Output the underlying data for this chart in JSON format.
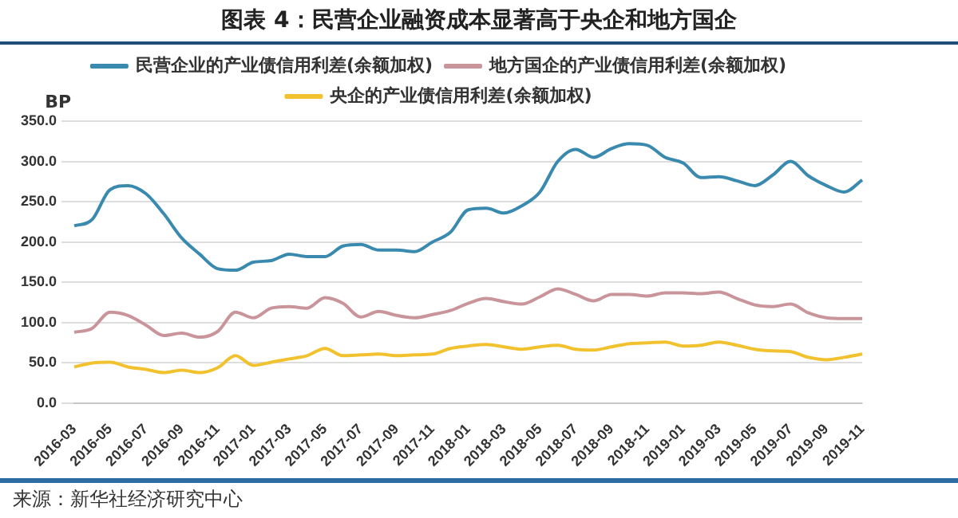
{
  "chart_data": {
    "type": "line",
    "title": "图表 4：民营企业融资成本显著高于央企和地方国企",
    "ylabel": "BP",
    "categories": [
      "2016-03",
      null,
      "2016-05",
      null,
      "2016-07",
      null,
      "2016-09",
      null,
      "2016-11",
      null,
      "2017-01",
      null,
      "2017-03",
      null,
      "2017-05",
      null,
      "2017-07",
      null,
      "2017-09",
      null,
      "2017-11",
      null,
      "2018-01",
      null,
      "2018-03",
      null,
      "2018-05",
      null,
      "2018-07",
      null,
      "2018-09",
      null,
      "2018-11",
      null,
      "2019-01",
      null,
      "2019-03",
      null,
      "2019-05",
      null,
      "2019-07",
      null,
      "2019-09",
      null,
      "2019-11"
    ],
    "series": [
      {
        "name": "民营企业的产业债信用利差(余额加权)",
        "color": "#3a8ab0",
        "values": [
          220,
          228,
          265,
          270,
          260,
          235,
          205,
          185,
          167,
          165,
          175,
          177,
          185,
          182,
          182,
          195,
          197,
          190,
          190,
          188,
          200,
          212,
          240,
          242,
          236,
          245,
          262,
          300,
          315,
          305,
          316,
          322,
          320,
          305,
          298,
          280,
          281,
          276,
          270,
          283,
          300,
          282,
          270,
          262,
          277
        ]
      },
      {
        "name": "地方国企的产业债信用利差(余额加权)",
        "color": "#c9959b",
        "values": [
          88,
          93,
          113,
          109,
          97,
          84,
          87,
          82,
          89,
          113,
          106,
          118,
          120,
          118,
          131,
          124,
          107,
          114,
          109,
          106,
          110,
          115,
          124,
          130,
          126,
          123,
          132,
          142,
          135,
          127,
          135,
          135,
          133,
          137,
          137,
          136,
          138,
          130,
          122,
          120,
          123,
          112,
          106,
          105,
          105
        ]
      },
      {
        "name": "央企的产业债信用利差(余额加权)",
        "color": "#f2c12e",
        "values": [
          45,
          50,
          51,
          45,
          42,
          38,
          41,
          38,
          44,
          59,
          47,
          51,
          55,
          59,
          68,
          59,
          60,
          61,
          59,
          60,
          61,
          68,
          71,
          73,
          70,
          67,
          70,
          72,
          67,
          66,
          70,
          74,
          75,
          76,
          71,
          72,
          76,
          72,
          67,
          65,
          64,
          57,
          54,
          57,
          61
        ]
      }
    ],
    "ylim": [
      0,
      350
    ],
    "yticks": [
      {
        "value": 0,
        "label": "0.0"
      },
      {
        "value": 50,
        "label": "50.0"
      },
      {
        "value": 100,
        "label": "100.0"
      },
      {
        "value": 150,
        "label": "150.0"
      },
      {
        "value": 200,
        "label": "200.0"
      },
      {
        "value": 250,
        "label": "250.0"
      },
      {
        "value": 300,
        "label": "300.0"
      },
      {
        "value": 350,
        "label": "350.0"
      }
    ],
    "grid": "y",
    "legend": "top",
    "marker": "none",
    "line_style": "solid",
    "annotations": [
      "来源：新华社经济研究中心"
    ]
  }
}
